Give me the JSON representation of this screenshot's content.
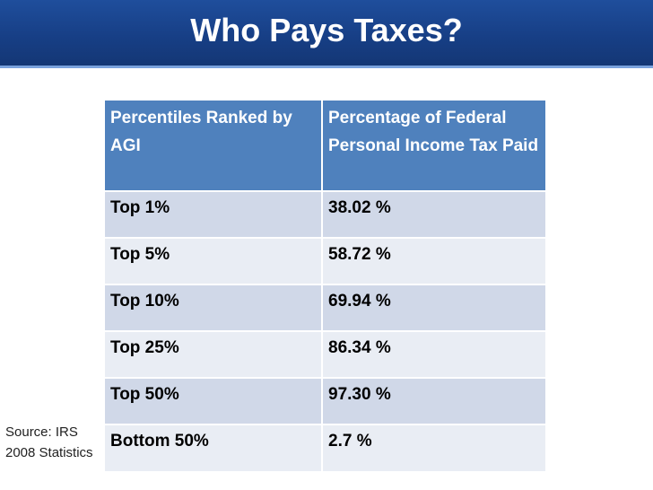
{
  "slide": {
    "title": "Who Pays Taxes?"
  },
  "table": {
    "headers": [
      "Percentiles Ranked by AGI",
      "Percentage of Federal Personal Income Tax Paid"
    ],
    "rows": [
      [
        "Top 1%",
        "38.02 %"
      ],
      [
        "Top 5%",
        "58.72 %"
      ],
      [
        "Top 10%",
        "69.94 %"
      ],
      [
        "Top 25%",
        "86.34 %"
      ],
      [
        "Top 50%",
        "97.30 %"
      ],
      [
        "Bottom 50%",
        "2.7 %"
      ]
    ]
  },
  "source": {
    "line1": "Source:  IRS",
    "line2": "2008 Statistics"
  },
  "colors": {
    "title_bar": "#173f86",
    "header_fill": "#4f81bd",
    "row_fill": "#d0d8e8",
    "row_alt_fill": "#e9edf4"
  }
}
